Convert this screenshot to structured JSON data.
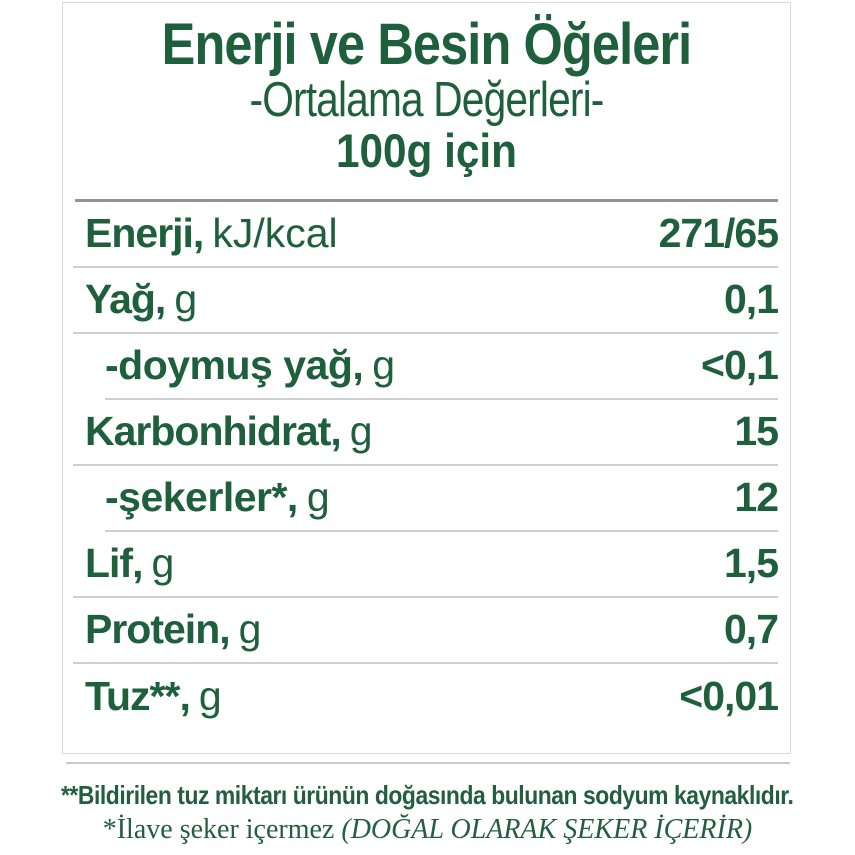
{
  "colors": {
    "text_green": "#1e5f3c",
    "footnote_green": "#235e41",
    "top_rule_gray": "#8f959a",
    "row_rule_gray": "#ccd0d2",
    "card_border_gray": "#d8dadb"
  },
  "header": {
    "title": "Enerji ve Besin Öğeleri",
    "subtitle": "-Ortalama Değerleri-",
    "serving": "100g için"
  },
  "table": {
    "rows": [
      {
        "label": "Enerji,",
        "unit": "kJ/kcal",
        "value": "271/65",
        "sub": false
      },
      {
        "label": "Yağ,",
        "unit": "g",
        "value": "0,1",
        "sub": false
      },
      {
        "label": "-doymuş yağ,",
        "unit": "g",
        "value": "<0,1",
        "sub": true
      },
      {
        "label": "Karbonhidrat,",
        "unit": "g",
        "value": "15",
        "sub": false
      },
      {
        "label": "-şekerler*,",
        "unit": "g",
        "value": "12",
        "sub": true
      },
      {
        "label": "Lif,",
        "unit": "g",
        "value": "1,5",
        "sub": false
      },
      {
        "label": "Protein,",
        "unit": "g",
        "value": "0,7",
        "sub": false
      },
      {
        "label": "Tuz**,",
        "unit": "g",
        "value": "<0,01",
        "sub": false
      }
    ]
  },
  "footnotes": {
    "salt_note": "**Bildirilen tuz miktarı ürünün doğasında bulunan sodyum kaynaklıdır.",
    "sugar_note": "*İlave şeker içermez ",
    "sugar_note_italic": "(DOĞAL OLARAK ŞEKER İÇERİR)"
  }
}
